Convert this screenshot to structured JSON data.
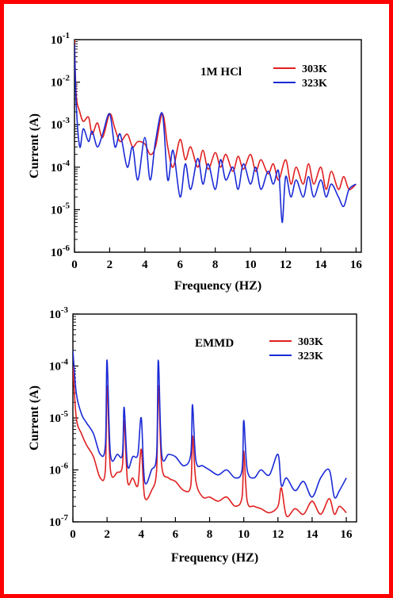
{
  "chart_data": [
    {
      "type": "line",
      "annotation": "1M HCl",
      "xlabel": "Frequency (HZ)",
      "ylabel": "Current (A)",
      "xlim": [
        0,
        16.3
      ],
      "ylim_exp": [
        -6,
        -1
      ],
      "yscale": "log",
      "x_ticks": [
        0,
        2,
        4,
        6,
        8,
        10,
        12,
        14,
        16
      ],
      "y_ticks": [
        -1,
        -2,
        -3,
        -4,
        -5,
        -6
      ],
      "legend_position": "top-right",
      "series": [
        {
          "name": "303K",
          "color": "#e02020",
          "x": [
            0.0,
            0.1,
            0.3,
            0.5,
            0.8,
            1.0,
            1.3,
            1.6,
            2.0,
            2.3,
            2.6,
            3.0,
            3.3,
            3.6,
            4.0,
            4.3,
            4.6,
            5.0,
            5.3,
            5.6,
            6.0,
            6.3,
            6.6,
            7.0,
            7.3,
            7.6,
            8.0,
            8.3,
            8.6,
            9.0,
            9.3,
            9.6,
            10.0,
            10.3,
            10.6,
            11.0,
            11.3,
            11.6,
            12.0,
            12.3,
            12.6,
            13.0,
            13.3,
            13.6,
            14.0,
            14.3,
            14.6,
            15.0,
            15.3,
            15.6,
            16.0
          ],
          "y": [
            0.1,
            0.005,
            0.002,
            0.0012,
            0.0015,
            0.0006,
            0.0011,
            0.0005,
            0.0018,
            0.0008,
            0.0004,
            0.0006,
            0.0003,
            0.0004,
            0.00035,
            0.0002,
            0.0003,
            0.0018,
            0.0003,
            0.0001,
            0.00045,
            0.00015,
            0.0003,
            0.0001,
            0.00025,
            9e-05,
            0.00022,
            0.0001,
            0.0002,
            8e-05,
            0.00018,
            9e-05,
            0.0002,
            8e-05,
            0.00015,
            7e-05,
            0.00012,
            5e-05,
            0.00015,
            4e-05,
            0.0001,
            4e-05,
            0.00012,
            4e-05,
            0.0001,
            3e-05,
            8e-05,
            3e-05,
            6e-05,
            3e-05,
            4e-05
          ]
        },
        {
          "name": "323K",
          "color": "#1a2ad6",
          "x": [
            0.0,
            0.1,
            0.3,
            0.5,
            0.8,
            1.0,
            1.3,
            1.6,
            2.0,
            2.3,
            2.6,
            3.0,
            3.3,
            3.6,
            4.0,
            4.3,
            4.6,
            5.0,
            5.3,
            5.6,
            6.0,
            6.3,
            6.6,
            7.0,
            7.3,
            7.6,
            8.0,
            8.3,
            8.6,
            9.0,
            9.3,
            9.6,
            10.0,
            10.3,
            10.6,
            11.0,
            11.3,
            11.6,
            11.8,
            12.0,
            12.3,
            12.6,
            13.0,
            13.3,
            13.6,
            14.0,
            14.3,
            14.6,
            15.0,
            15.3,
            15.6,
            16.0
          ],
          "y": [
            0.08,
            0.003,
            0.0003,
            0.0008,
            0.0004,
            0.0007,
            0.0003,
            0.0006,
            0.0018,
            0.0003,
            0.0006,
            0.0001,
            0.0003,
            5e-05,
            0.0005,
            5e-05,
            0.0004,
            0.0018,
            5e-05,
            0.00025,
            2e-05,
            0.00012,
            3e-05,
            0.00016,
            4e-05,
            0.00012,
            3e-05,
            0.00015,
            5e-05,
            0.0001,
            3e-05,
            0.00012,
            4e-05,
            0.0001,
            3e-05,
            8e-05,
            4e-05,
            8e-05,
            5e-06,
            6e-05,
            2e-05,
            5e-05,
            2e-05,
            6e-05,
            2e-05,
            5e-05,
            2e-05,
            4e-05,
            2e-05,
            1.2e-05,
            3e-05,
            4e-05
          ]
        }
      ]
    },
    {
      "type": "line",
      "annotation": "EMMD",
      "xlabel": "Frequency (HZ)",
      "ylabel": "Current (A)",
      "xlim": [
        0,
        16.6
      ],
      "ylim_exp": [
        -7,
        -3
      ],
      "yscale": "log",
      "x_ticks": [
        0,
        2,
        4,
        6,
        8,
        10,
        12,
        14,
        16
      ],
      "y_ticks": [
        -3,
        -4,
        -5,
        -6,
        -7
      ],
      "legend_position": "top-right",
      "series": [
        {
          "name": "303K",
          "color": "#e02020",
          "x": [
            0.0,
            0.2,
            0.5,
            0.8,
            1.2,
            1.6,
            1.9,
            2.0,
            2.2,
            2.6,
            2.9,
            3.0,
            3.2,
            3.5,
            3.8,
            4.0,
            4.2,
            4.6,
            4.9,
            5.0,
            5.2,
            5.6,
            6.0,
            6.5,
            6.9,
            7.0,
            7.2,
            7.6,
            8.0,
            8.5,
            9.0,
            9.5,
            9.9,
            10.0,
            10.2,
            10.6,
            11.0,
            11.5,
            12.0,
            12.2,
            12.5,
            13.0,
            13.5,
            14.0,
            14.5,
            15.0,
            15.3,
            15.6,
            16.0
          ],
          "y": [
            0.0001,
            1e-05,
            5e-06,
            3e-06,
            1.8e-06,
            7e-07,
            1e-06,
            4.2e-05,
            1e-06,
            9e-07,
            1.2e-06,
            9e-06,
            6e-07,
            7e-07,
            5e-07,
            2.5e-06,
            3e-07,
            4e-07,
            1e-06,
            4.2e-05,
            1.2e-06,
            7e-07,
            6e-07,
            4e-07,
            5e-07,
            4.5e-06,
            6e-07,
            3e-07,
            3e-07,
            2.5e-07,
            3e-07,
            2e-07,
            3e-07,
            2.3e-06,
            2.5e-07,
            2e-07,
            1.8e-07,
            1.5e-07,
            2e-07,
            4.5e-07,
            1.3e-07,
            1.8e-07,
            1.4e-07,
            2.5e-07,
            1.4e-07,
            2.8e-07,
            1.4e-07,
            2e-07,
            1.5e-07
          ]
        },
        {
          "name": "323K",
          "color": "#1a2ad6",
          "x": [
            0.0,
            0.2,
            0.5,
            0.8,
            1.2,
            1.6,
            1.9,
            2.0,
            2.2,
            2.6,
            2.9,
            3.0,
            3.2,
            3.5,
            3.8,
            4.0,
            4.2,
            4.6,
            4.9,
            5.0,
            5.2,
            5.6,
            6.0,
            6.5,
            6.9,
            7.0,
            7.2,
            7.6,
            8.0,
            8.5,
            9.0,
            9.5,
            9.9,
            10.0,
            10.2,
            10.6,
            11.0,
            11.5,
            12.0,
            12.2,
            12.5,
            13.0,
            13.5,
            14.0,
            14.5,
            15.0,
            15.3,
            15.6,
            16.0
          ],
          "y": [
            0.0002,
            3e-05,
            1.2e-05,
            8e-06,
            5e-06,
            2e-06,
            3e-06,
            0.00013,
            2e-06,
            2e-06,
            2e-06,
            1.6e-05,
            1.2e-06,
            1.8e-06,
            2e-06,
            1e-05,
            6e-07,
            1e-06,
            2e-06,
            0.00013,
            2e-06,
            2e-06,
            1.8e-06,
            1.2e-06,
            2e-06,
            1.8e-05,
            1.5e-06,
            1.2e-06,
            1e-06,
            8e-07,
            1e-06,
            7e-07,
            1e-06,
            9e-06,
            1e-06,
            7e-07,
            1e-06,
            8e-07,
            2e-06,
            5e-07,
            7e-07,
            4e-07,
            6e-07,
            3e-07,
            7e-07,
            1e-06,
            3e-07,
            4e-07,
            7e-07
          ]
        }
      ]
    }
  ]
}
